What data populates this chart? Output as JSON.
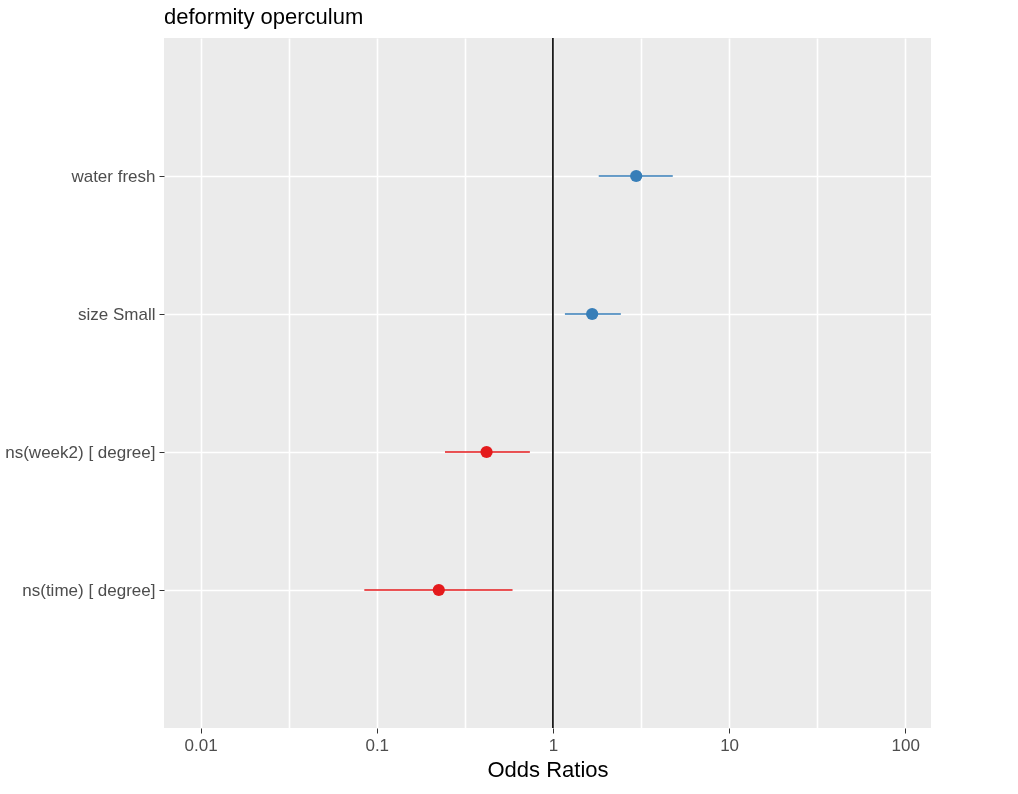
{
  "chart_data": {
    "type": "scatter",
    "title": "deformity operculum",
    "xlabel": "Odds Ratios",
    "categories": [
      "water fresh",
      "size Small",
      "ns(week2) [ degree]",
      "ns(time) [ degree]"
    ],
    "orientation": "horizontal",
    "values": [
      2.97,
      1.67,
      0.42,
      0.225
    ],
    "errors": [
      [
        1.82,
        4.79
      ],
      [
        1.17,
        2.43
      ],
      [
        0.244,
        0.74
      ],
      [
        0.085,
        0.59
      ]
    ],
    "colors": [
      "#377eb8",
      "#377eb8",
      "#e41a1c",
      "#e41a1c"
    ],
    "log": "x",
    "xlim": [
      0.0062,
      140
    ],
    "xticks": [
      0.01,
      {
        "value": 0.0316,
        "label": null
      },
      0.1,
      {
        "value": 0.316,
        "label": null
      },
      1,
      {
        "value": 3.16,
        "label": null
      },
      10,
      {
        "value": 31.6,
        "label": null
      },
      100
    ],
    "ref_lines": [
      {
        "axis": "x",
        "value": 1,
        "color": "#000000"
      }
    ],
    "grid": true,
    "marker": "circle"
  }
}
